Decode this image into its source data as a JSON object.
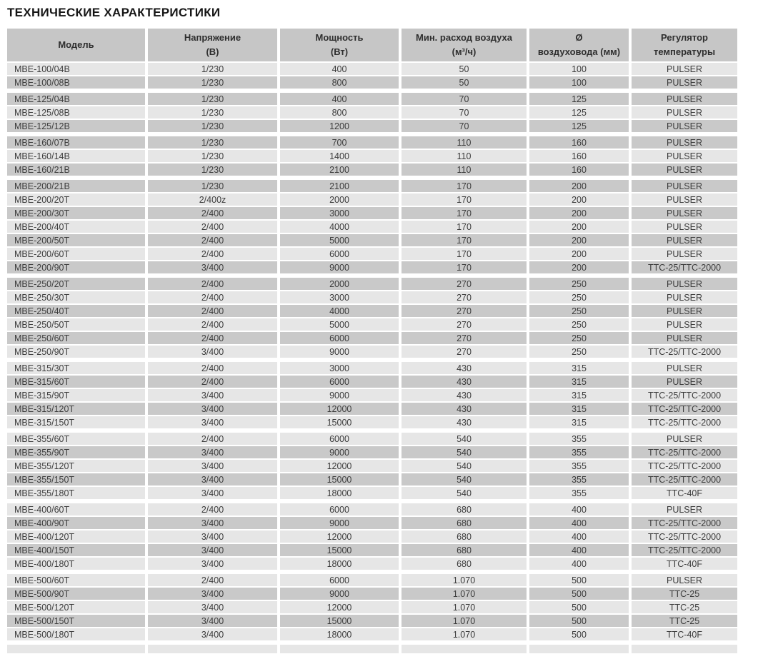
{
  "page_title": "ТЕХНИЧЕСКИЕ ХАРАКТЕРИСТИКИ",
  "colors": {
    "header_bg": "#c6c6c6",
    "row_light": "#e6e6e6",
    "row_dark": "#c9c9c9",
    "text": "#3d3d3d"
  },
  "table": {
    "columns": [
      {
        "id": "model",
        "line1": "Модель",
        "line2": ""
      },
      {
        "id": "voltage",
        "line1": "Напряжение",
        "line2": "(В)"
      },
      {
        "id": "power",
        "line1": "Мощность",
        "line2": "(Вт)"
      },
      {
        "id": "airflow",
        "line1": "Мин. расход воздуха",
        "line2": "(м³/ч)"
      },
      {
        "id": "diameter",
        "line1": "Ø",
        "line2": "воздуховода (мм)"
      },
      {
        "id": "regulator",
        "line1": "Регулятор",
        "line2": "температуры"
      }
    ],
    "groups": [
      {
        "rows": [
          [
            "MBE-100/04B",
            "1/230",
            "400",
            "50",
            "100",
            "PULSER"
          ],
          [
            "MBE-100/08B",
            "1/230",
            "800",
            "50",
            "100",
            "PULSER"
          ]
        ]
      },
      {
        "rows": [
          [
            "MBE-125/04B",
            "1/230",
            "400",
            "70",
            "125",
            "PULSER"
          ],
          [
            "MBE-125/08B",
            "1/230",
            "800",
            "70",
            "125",
            "PULSER"
          ],
          [
            "MBE-125/12B",
            "1/230",
            "1200",
            "70",
            "125",
            "PULSER"
          ]
        ]
      },
      {
        "rows": [
          [
            "MBE-160/07B",
            "1/230",
            "700",
            "110",
            "160",
            "PULSER"
          ],
          [
            "MBE-160/14B",
            "1/230",
            "1400",
            "110",
            "160",
            "PULSER"
          ],
          [
            "MBE-160/21B",
            "1/230",
            "2100",
            "110",
            "160",
            "PULSER"
          ]
        ]
      },
      {
        "rows": [
          [
            "MBE-200/21B",
            "1/230",
            "2100",
            "170",
            "200",
            "PULSER"
          ],
          [
            "MBE-200/20T",
            "2/400z",
            "2000",
            "170",
            "200",
            "PULSER"
          ],
          [
            "MBE-200/30T",
            "2/400",
            "3000",
            "170",
            "200",
            "PULSER"
          ],
          [
            "MBE-200/40T",
            "2/400",
            "4000",
            "170",
            "200",
            "PULSER"
          ],
          [
            "MBE-200/50T",
            "2/400",
            "5000",
            "170",
            "200",
            "PULSER"
          ],
          [
            "MBE-200/60T",
            "2/400",
            "6000",
            "170",
            "200",
            "PULSER"
          ],
          [
            "MBE-200/90T",
            "3/400",
            "9000",
            "170",
            "200",
            "TTC-25/TTC-2000"
          ]
        ]
      },
      {
        "rows": [
          [
            "MBE-250/20T",
            "2/400",
            "2000",
            "270",
            "250",
            "PULSER"
          ],
          [
            "MBE-250/30T",
            "2/400",
            "3000",
            "270",
            "250",
            "PULSER"
          ],
          [
            "MBE-250/40T",
            "2/400",
            "4000",
            "270",
            "250",
            "PULSER"
          ],
          [
            "MBE-250/50T",
            "2/400",
            "5000",
            "270",
            "250",
            "PULSER"
          ],
          [
            "MBE-250/60T",
            "2/400",
            "6000",
            "270",
            "250",
            "PULSER"
          ],
          [
            "MBE-250/90T",
            "3/400",
            "9000",
            "270",
            "250",
            "TTC-25/TTC-2000"
          ]
        ]
      },
      {
        "rows": [
          [
            "MBE-315/30T",
            "2/400",
            "3000",
            "430",
            "315",
            "PULSER"
          ],
          [
            "MBE-315/60T",
            "2/400",
            "6000",
            "430",
            "315",
            "PULSER"
          ],
          [
            "MBE-315/90T",
            "3/400",
            "9000",
            "430",
            "315",
            "TTC-25/TTC-2000"
          ],
          [
            "MBE-315/120T",
            "3/400",
            "12000",
            "430",
            "315",
            "TTC-25/TTC-2000"
          ],
          [
            "MBE-315/150T",
            "3/400",
            "15000",
            "430",
            "315",
            "TTC-25/TTC-2000"
          ]
        ]
      },
      {
        "rows": [
          [
            "MBE-355/60T",
            "2/400",
            "6000",
            "540",
            "355",
            "PULSER"
          ],
          [
            "MBE-355/90T",
            "3/400",
            "9000",
            "540",
            "355",
            "TTC-25/TTC-2000"
          ],
          [
            "MBE-355/120T",
            "3/400",
            "12000",
            "540",
            "355",
            "TTC-25/TTC-2000"
          ],
          [
            "MBE-355/150T",
            "3/400",
            "15000",
            "540",
            "355",
            "TTC-25/TTC-2000"
          ],
          [
            "MBE-355/180T",
            "3/400",
            "18000",
            "540",
            "355",
            "TTC-40F"
          ]
        ]
      },
      {
        "rows": [
          [
            "MBE-400/60T",
            "2/400",
            "6000",
            "680",
            "400",
            "PULSER"
          ],
          [
            "MBE-400/90T",
            "3/400",
            "9000",
            "680",
            "400",
            "TTC-25/TTC-2000"
          ],
          [
            "MBE-400/120T",
            "3/400",
            "12000",
            "680",
            "400",
            "TTC-25/TTC-2000"
          ],
          [
            "MBE-400/150T",
            "3/400",
            "15000",
            "680",
            "400",
            "TTC-25/TTC-2000"
          ],
          [
            "MBE-400/180T",
            "3/400",
            "18000",
            "680",
            "400",
            "TTC-40F"
          ]
        ]
      },
      {
        "rows": [
          [
            "MBE-500/60T",
            "2/400",
            "6000",
            "1.070",
            "500",
            "PULSER"
          ],
          [
            "MBE-500/90T",
            "3/400",
            "9000",
            "1.070",
            "500",
            "TTC-25"
          ],
          [
            "MBE-500/120T",
            "3/400",
            "12000",
            "1.070",
            "500",
            "TTC-25"
          ],
          [
            "MBE-500/150T",
            "3/400",
            "15000",
            "1.070",
            "500",
            "TTC-25"
          ],
          [
            "MBE-500/180T",
            "3/400",
            "18000",
            "1.070",
            "500",
            "TTC-40F"
          ]
        ]
      }
    ]
  }
}
